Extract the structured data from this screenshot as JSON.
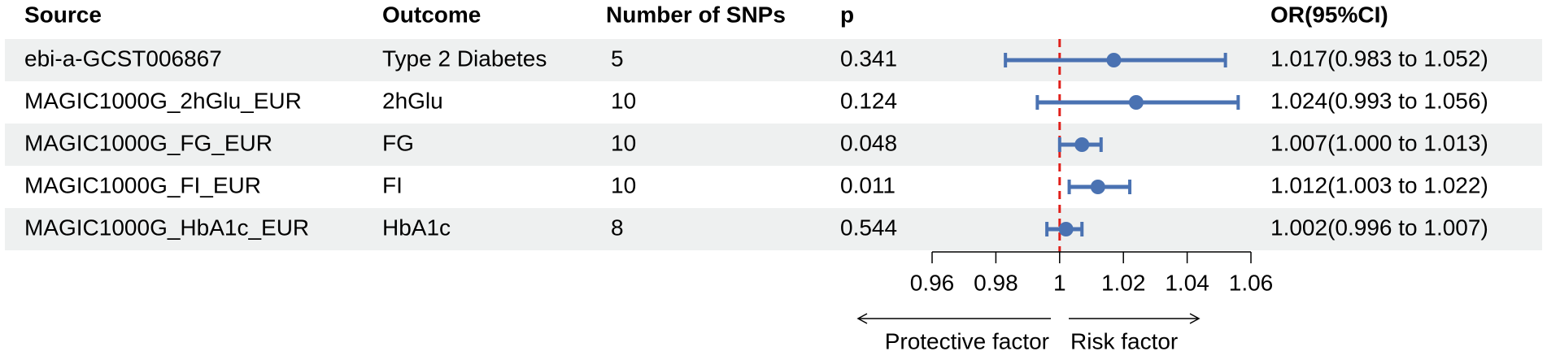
{
  "chart_data": {
    "type": "forest",
    "headers": {
      "source": "Source",
      "outcome": "Outcome",
      "snps": "Number of SNPs",
      "p": "p",
      "or": "OR(95%CI)"
    },
    "sources": [
      "ebi-a-GCST006867",
      "MAGIC1000G_2hGlu_EUR",
      "MAGIC1000G_FG_EUR",
      "MAGIC1000G_FI_EUR",
      "MAGIC1000G_HbA1c_EUR"
    ],
    "outcomes": [
      "Type 2 Diabetes",
      "2hGlu",
      "FG",
      "FI",
      "HbA1c"
    ],
    "n_snps": [
      5,
      10,
      10,
      10,
      8
    ],
    "p_values": [
      0.341,
      0.124,
      0.048,
      0.011,
      0.544
    ],
    "values": [
      1.017,
      1.024,
      1.007,
      1.012,
      1.002
    ],
    "lower": [
      0.983,
      0.993,
      1.0,
      1.003,
      0.996
    ],
    "upper": [
      1.052,
      1.056,
      1.013,
      1.022,
      1.007
    ],
    "value_labels": [
      "1.017(0.983 to 1.052)",
      "1.024(0.993 to 1.056)",
      "1.007(1.000 to 1.013)",
      "1.012(1.003 to 1.022)",
      "1.002(0.996 to 1.007)"
    ],
    "color": "#4a72b2",
    "reference": 1,
    "reference_color": "#e0201b",
    "xlim": [
      0.96,
      1.06
    ],
    "xticks": [
      0.96,
      0.98,
      1,
      1.02,
      1.04,
      1.06
    ],
    "label_left": "Protective factor",
    "label_right": "Risk factor"
  }
}
